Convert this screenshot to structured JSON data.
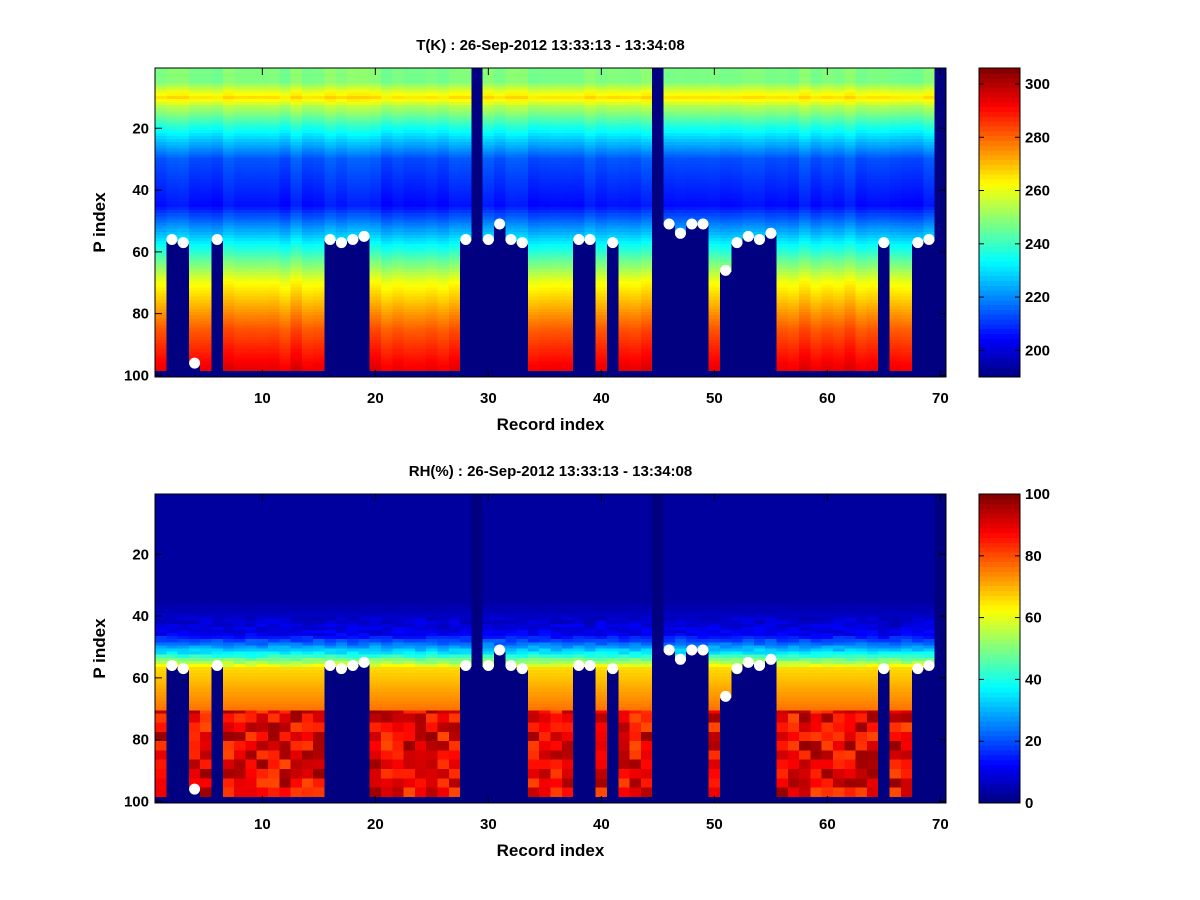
{
  "chart_data": [
    {
      "type": "heatmap",
      "title": "T(K) : 26-Sep-2012 13:33:13 - 13:34:08",
      "xlabel": "Record index",
      "ylabel": "P index",
      "x_ticks": [
        "10",
        "20",
        "30",
        "40",
        "50",
        "60",
        "70"
      ],
      "y_ticks": [
        "20",
        "40",
        "60",
        "80",
        "100"
      ],
      "xlim": [
        0.5,
        70.5
      ],
      "ylim": [
        0.5,
        100.5
      ],
      "y_reversed": true,
      "colormap": "jet",
      "color_range": [
        190,
        306
      ],
      "colorbar_ticks": [
        "200",
        "220",
        "240",
        "260",
        "280",
        "300"
      ],
      "variable": "T",
      "surface_markers": [
        {
          "record": 2,
          "p": 56
        },
        {
          "record": 3,
          "p": 57
        },
        {
          "record": 4,
          "p": 96
        },
        {
          "record": 6,
          "p": 56
        },
        {
          "record": 16,
          "p": 56
        },
        {
          "record": 17,
          "p": 57
        },
        {
          "record": 18,
          "p": 56
        },
        {
          "record": 19,
          "p": 55
        },
        {
          "record": 28,
          "p": 56
        },
        {
          "record": 30,
          "p": 56
        },
        {
          "record": 31,
          "p": 51
        },
        {
          "record": 32,
          "p": 56
        },
        {
          "record": 33,
          "p": 57
        },
        {
          "record": 38,
          "p": 56
        },
        {
          "record": 39,
          "p": 56
        },
        {
          "record": 41,
          "p": 57
        },
        {
          "record": 46,
          "p": 51
        },
        {
          "record": 47,
          "p": 54
        },
        {
          "record": 48,
          "p": 51
        },
        {
          "record": 49,
          "p": 51
        },
        {
          "record": 51,
          "p": 66
        },
        {
          "record": 52,
          "p": 57
        },
        {
          "record": 53,
          "p": 55
        },
        {
          "record": 54,
          "p": 56
        },
        {
          "record": 55,
          "p": 54
        },
        {
          "record": 65,
          "p": 57
        },
        {
          "record": 68,
          "p": 57
        },
        {
          "record": 69,
          "p": 56
        }
      ]
    },
    {
      "type": "heatmap",
      "title": "RH(%) : 26-Sep-2012 13:33:13 - 13:34:08",
      "xlabel": "Record index",
      "ylabel": "P index",
      "x_ticks": [
        "10",
        "20",
        "30",
        "40",
        "50",
        "60",
        "70"
      ],
      "y_ticks": [
        "20",
        "40",
        "60",
        "80",
        "100"
      ],
      "xlim": [
        0.5,
        70.5
      ],
      "ylim": [
        0.5,
        100.5
      ],
      "y_reversed": true,
      "colormap": "jet",
      "color_range": [
        0,
        100
      ],
      "colorbar_ticks": [
        "0",
        "20",
        "40",
        "60",
        "80",
        "100"
      ],
      "variable": "RH",
      "surface_markers": [
        {
          "record": 2,
          "p": 56
        },
        {
          "record": 3,
          "p": 57
        },
        {
          "record": 4,
          "p": 96
        },
        {
          "record": 6,
          "p": 56
        },
        {
          "record": 16,
          "p": 56
        },
        {
          "record": 17,
          "p": 57
        },
        {
          "record": 18,
          "p": 56
        },
        {
          "record": 19,
          "p": 55
        },
        {
          "record": 28,
          "p": 56
        },
        {
          "record": 30,
          "p": 56
        },
        {
          "record": 31,
          "p": 51
        },
        {
          "record": 32,
          "p": 56
        },
        {
          "record": 33,
          "p": 57
        },
        {
          "record": 38,
          "p": 56
        },
        {
          "record": 39,
          "p": 56
        },
        {
          "record": 41,
          "p": 57
        },
        {
          "record": 46,
          "p": 51
        },
        {
          "record": 47,
          "p": 54
        },
        {
          "record": 48,
          "p": 51
        },
        {
          "record": 49,
          "p": 51
        },
        {
          "record": 51,
          "p": 66
        },
        {
          "record": 52,
          "p": 57
        },
        {
          "record": 53,
          "p": 55
        },
        {
          "record": 54,
          "p": 56
        },
        {
          "record": 55,
          "p": 54
        },
        {
          "record": 65,
          "p": 57
        },
        {
          "record": 68,
          "p": 57
        },
        {
          "record": 69,
          "p": 56
        }
      ]
    }
  ]
}
